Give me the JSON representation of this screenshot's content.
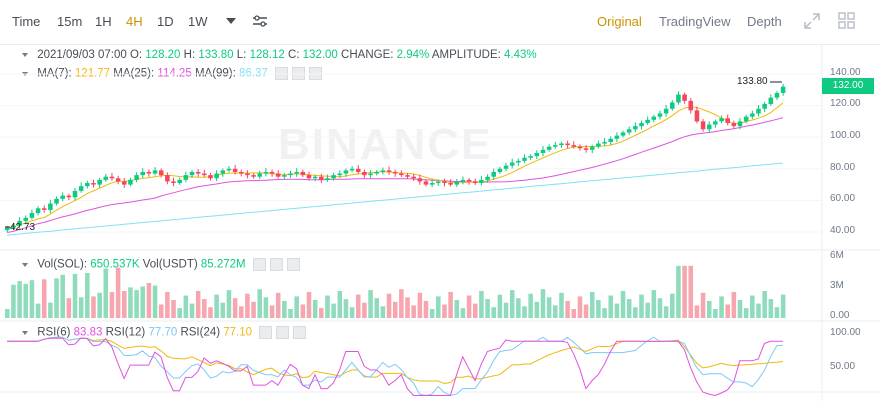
{
  "toolbar": {
    "intervals": [
      "Time",
      "15m",
      "1H",
      "4H",
      "1D",
      "1W"
    ],
    "active_interval": "4H",
    "views": [
      "Original",
      "TradingView",
      "Depth"
    ],
    "active_view": "Original"
  },
  "ohlc_legend": {
    "datetime": "2021/09/03 07:00",
    "open_label": "O:",
    "open": "128.20",
    "high_label": "H:",
    "high": "133.80",
    "low_label": "L:",
    "low": "128.12",
    "close_label": "C:",
    "close": "132.00",
    "change_label": "CHANGE:",
    "change": "2.94%",
    "amplitude_label": "AMPLITUDE:",
    "amplitude": "4.43%"
  },
  "ma_legend": {
    "ma7_label": "MA(7):",
    "ma7": "121.77",
    "ma7_color": "#f0b90b",
    "ma25_label": "MA(25):",
    "ma25": "114.25",
    "ma25_color": "#e052e0",
    "ma99_label": "MA(99):",
    "ma99": "86.37",
    "ma99_color": "#7fe3f5"
  },
  "vol_legend": {
    "sol_label": "Vol(SOL):",
    "sol": "650.537K",
    "usdt_label": "Vol(USDT)",
    "usdt": "85.272M"
  },
  "rsi_legend": {
    "rsi6_label": "RSI(6)",
    "rsi6": "83.83",
    "rsi6_color": "#e052e0",
    "rsi12_label": "RSI(12)",
    "rsi12": "77.70",
    "rsi12_color": "#7fc8f5",
    "rsi24_label": "RSI(24)",
    "rsi24": "77.10",
    "rsi24_color": "#f0b90b"
  },
  "price_axis": [
    "140.00",
    "120.00",
    "100.00",
    "80.00",
    "60.00",
    "40.00"
  ],
  "volume_axis": [
    "6M",
    "3M",
    "0.00"
  ],
  "rsi_axis": [
    "100.00",
    "50.00"
  ],
  "current_price": "132.00",
  "high_marker": "133.80",
  "low_marker": "42.73",
  "watermark": "BINANCE",
  "colors": {
    "up": "#0ecb81",
    "down": "#f6465d",
    "up_soft": "#8fdcbc",
    "down_soft": "#f7a6b0",
    "accent": "#c99400"
  },
  "chart_data": {
    "type": "candlestick",
    "ylim": [
      35,
      142
    ],
    "closes": [
      42.7,
      44,
      47,
      49,
      52,
      55,
      54,
      58,
      61,
      63,
      62,
      66,
      69,
      71,
      70,
      73,
      75,
      74,
      72,
      70,
      73,
      76,
      78,
      77,
      79,
      76,
      72,
      71,
      73,
      76,
      78,
      77,
      76,
      74,
      77,
      79,
      80,
      78,
      77,
      76,
      75,
      77,
      78,
      77,
      75,
      76,
      77,
      78,
      76,
      74,
      75,
      73,
      74,
      76,
      77,
      79,
      80,
      78,
      76,
      77,
      78,
      79,
      78,
      77,
      76,
      75,
      74,
      72,
      70,
      71,
      72,
      71,
      70,
      72,
      73,
      72,
      71,
      73,
      75,
      78,
      80,
      82,
      84,
      85,
      87,
      88,
      90,
      92,
      94,
      95,
      96,
      95,
      94,
      93,
      92,
      94,
      96,
      97,
      99,
      101,
      103,
      105,
      107,
      109,
      111,
      113,
      115,
      118,
      122,
      127,
      123,
      117,
      110,
      105,
      108,
      110,
      112,
      109,
      107,
      110,
      113,
      115,
      118,
      121,
      125,
      128,
      132
    ]
  }
}
